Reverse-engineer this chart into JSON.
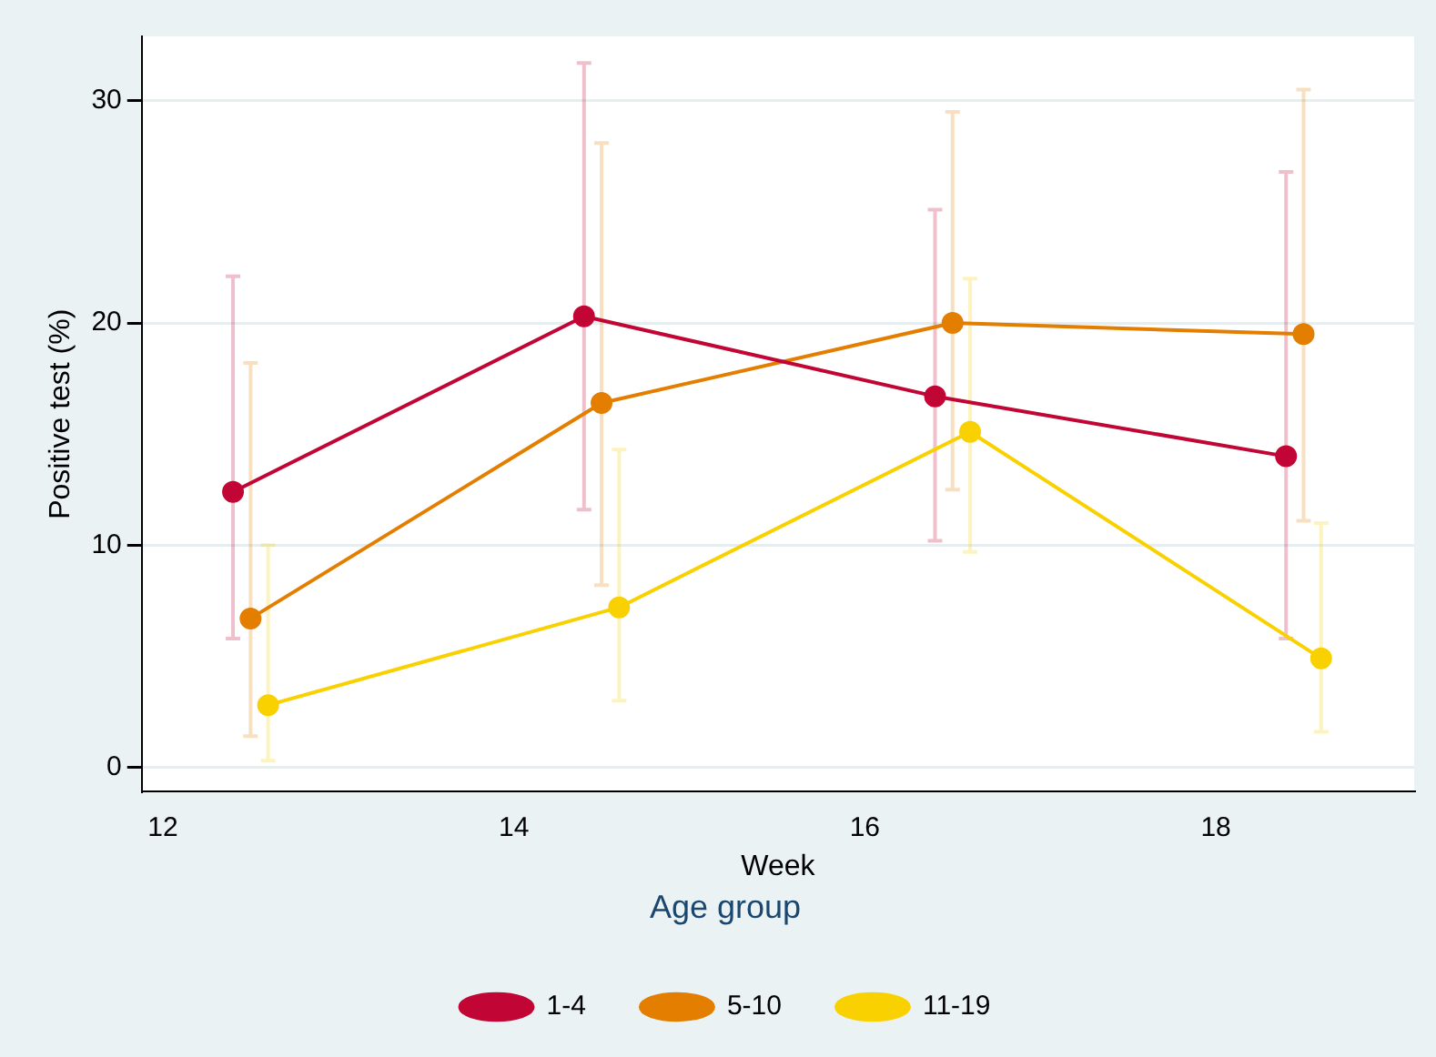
{
  "chart_data": {
    "type": "line",
    "xlabel": "Week",
    "ylabel": "Positive test (%)",
    "legend_title": "Age group",
    "xlim": [
      11.88,
      19.13
    ],
    "ylim": [
      -1.1,
      32.9
    ],
    "xticks": [
      12,
      14,
      16,
      18
    ],
    "yticks": [
      0,
      10,
      20,
      30
    ],
    "grid": "y",
    "legend": "bottom",
    "marker": "circle",
    "line_style": "solid",
    "series": [
      {
        "name": "1-4",
        "color": "#c10534",
        "x": [
          12.4,
          14.4,
          16.4,
          18.4
        ],
        "values": [
          12.4,
          20.3,
          16.7,
          14.0
        ],
        "errors": [
          [
            5.8,
            22.1
          ],
          [
            11.6,
            31.7
          ],
          [
            10.2,
            25.1
          ],
          [
            5.8,
            26.8
          ]
        ]
      },
      {
        "name": "5-10",
        "color": "#e37e00",
        "x": [
          12.5,
          14.5,
          16.5,
          18.5
        ],
        "values": [
          6.7,
          16.4,
          20.0,
          19.5
        ],
        "errors": [
          [
            1.4,
            18.2
          ],
          [
            8.2,
            28.1
          ],
          [
            12.5,
            29.5
          ],
          [
            11.1,
            30.5
          ]
        ]
      },
      {
        "name": "11-19",
        "color": "#f9d100",
        "x": [
          12.6,
          14.6,
          16.6,
          18.6
        ],
        "values": [
          2.8,
          7.2,
          15.1,
          4.9
        ],
        "errors": [
          [
            0.3,
            10.0
          ],
          [
            3.0,
            14.3
          ],
          [
            9.7,
            22.0
          ],
          [
            1.6,
            11.0
          ]
        ]
      }
    ]
  }
}
